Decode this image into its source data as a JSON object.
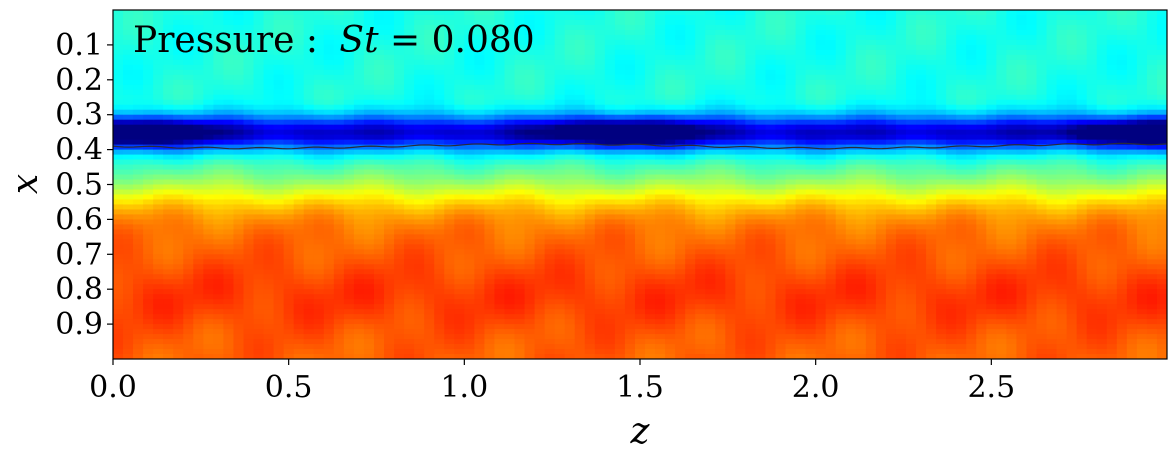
{
  "chart_data": {
    "type": "heatmap",
    "title_prefix": "Pressure :",
    "title_var": "St",
    "title_eq": " = 0.080",
    "xlabel": "z",
    "ylabel": "x",
    "xlim": [
      0.0,
      3.0
    ],
    "ylim": [
      1.0,
      0.0
    ],
    "x_ticks": [
      0.0,
      0.5,
      1.0,
      1.5,
      2.0,
      2.5
    ],
    "x_tick_labels": [
      "0.0",
      "0.5",
      "1.0",
      "1.5",
      "2.0",
      "2.5"
    ],
    "y_ticks": [
      0.1,
      0.2,
      0.3,
      0.4,
      0.5,
      0.6,
      0.7,
      0.8,
      0.9
    ],
    "y_tick_labels": [
      "0.1",
      "0.2",
      "0.3",
      "0.4",
      "0.5",
      "0.6",
      "0.7",
      "0.8",
      "0.9"
    ],
    "colormap": "jet",
    "contour_line_x": 0.39,
    "low_pressure_cores_z": [
      0.05,
      1.45,
      2.95
    ],
    "grid": false
  }
}
